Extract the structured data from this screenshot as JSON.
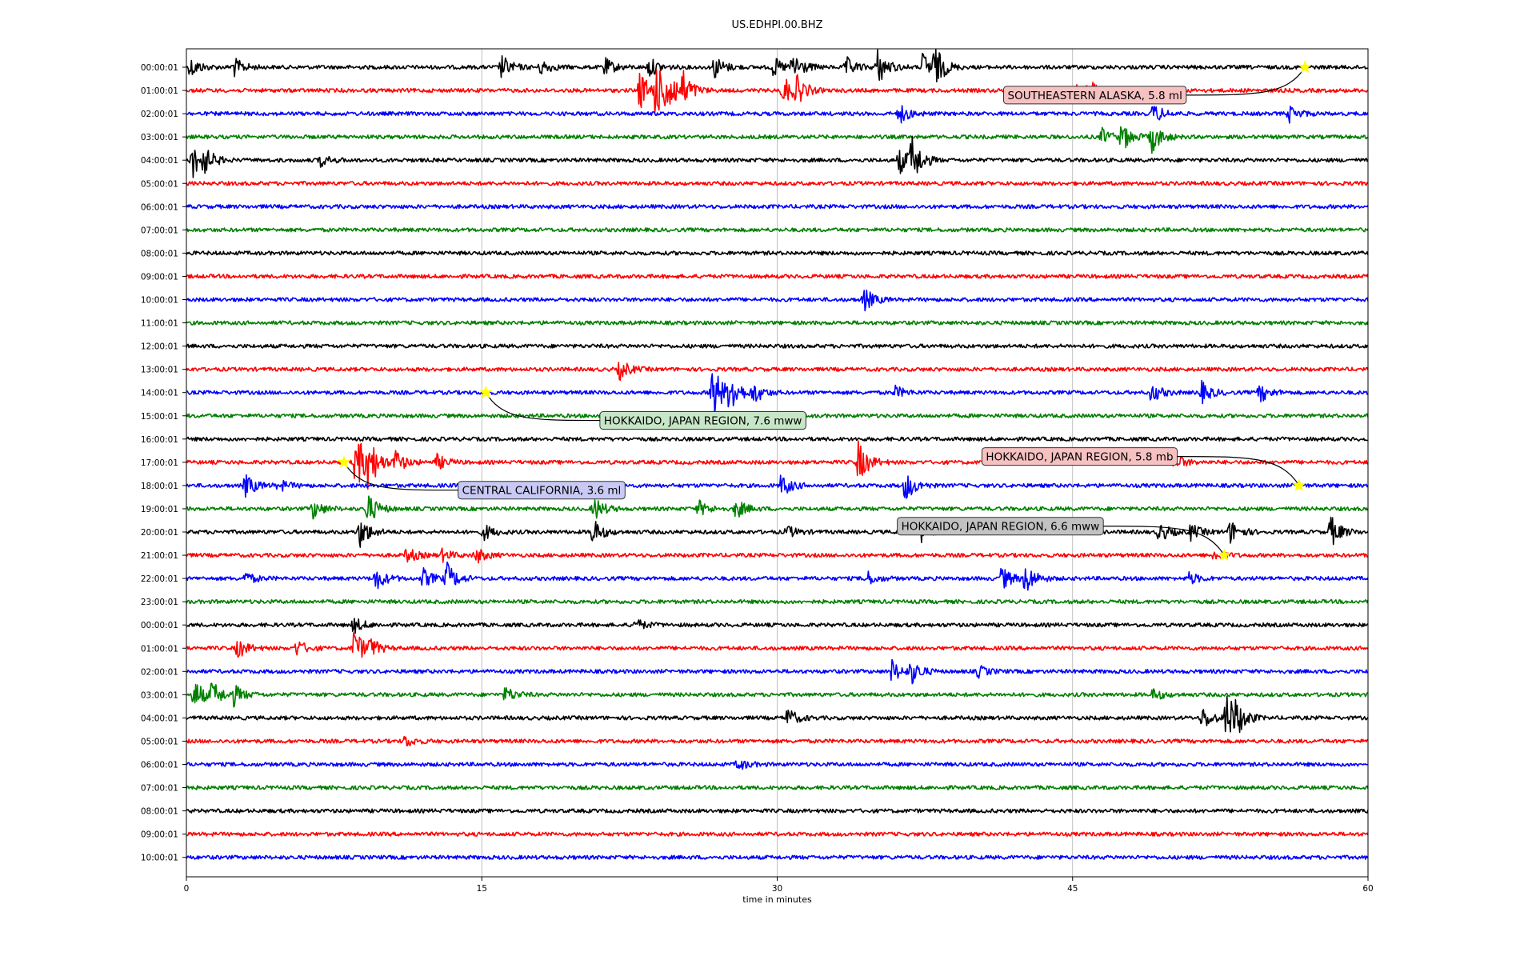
{
  "chart_data": {
    "type": "line",
    "title": "US.EDHPI.00.BHZ",
    "xlabel": "time in minutes",
    "ylabel": "",
    "xlim": [
      0,
      60
    ],
    "xticks": [
      "0",
      "15",
      "30",
      "45",
      "60"
    ],
    "grid": "vertical lines at x ticks",
    "trace_colors": [
      "#000000",
      "#ff0000",
      "#0000ff",
      "#008000"
    ],
    "rows": [
      {
        "label": "00:00:01",
        "color": "#000000",
        "bursts": [
          [
            0.2,
            0.5
          ],
          [
            2.4,
            0.5
          ],
          [
            16,
            0.6
          ],
          [
            18,
            0.4
          ],
          [
            21.2,
            0.5
          ],
          [
            23.5,
            0.5
          ],
          [
            26.8,
            0.6
          ],
          [
            29.8,
            0.5
          ],
          [
            30.8,
            0.8
          ],
          [
            33.5,
            0.5
          ],
          [
            35.1,
            0.9
          ],
          [
            37.4,
            0.8
          ],
          [
            38,
            0.9
          ]
        ]
      },
      {
        "label": "01:00:01",
        "color": "#ff0000",
        "bursts": [
          [
            23,
            1.0
          ],
          [
            23.8,
            1.4
          ],
          [
            24.4,
            1.2
          ],
          [
            25.2,
            0.8
          ],
          [
            30.3,
            0.8
          ],
          [
            31,
            0.6
          ],
          [
            45.3,
            0.5
          ],
          [
            46,
            0.4
          ]
        ]
      },
      {
        "label": "02:00:01",
        "color": "#0000ff",
        "bursts": [
          [
            36.2,
            0.5
          ],
          [
            49.1,
            0.5
          ],
          [
            56,
            0.4
          ]
        ]
      },
      {
        "label": "03:00:01",
        "color": "#008000",
        "bursts": [
          [
            46.5,
            0.4
          ],
          [
            47.5,
            0.7
          ],
          [
            49,
            0.8
          ]
        ]
      },
      {
        "label": "04:00:01",
        "color": "#000000",
        "bursts": [
          [
            0.3,
            0.9
          ],
          [
            0.8,
            0.6
          ],
          [
            6.8,
            0.3
          ],
          [
            36.2,
            0.7
          ],
          [
            36.8,
            1.2
          ]
        ]
      },
      {
        "label": "05:00:01",
        "color": "#ff0000",
        "bursts": []
      },
      {
        "label": "06:00:01",
        "color": "#0000ff",
        "bursts": []
      },
      {
        "label": "07:00:01",
        "color": "#008000",
        "bursts": []
      },
      {
        "label": "08:00:01",
        "color": "#000000",
        "bursts": []
      },
      {
        "label": "09:00:01",
        "color": "#ff0000",
        "bursts": []
      },
      {
        "label": "10:00:01",
        "color": "#0000ff",
        "bursts": [
          [
            34.4,
            0.6
          ]
        ]
      },
      {
        "label": "11:00:01",
        "color": "#008000",
        "bursts": []
      },
      {
        "label": "12:00:01",
        "color": "#000000",
        "bursts": []
      },
      {
        "label": "13:00:01",
        "color": "#ff0000",
        "bursts": [
          [
            22,
            0.5
          ]
        ]
      },
      {
        "label": "14:00:01",
        "color": "#0000ff",
        "bursts": [
          [
            26.7,
            1.6
          ],
          [
            27.6,
            1.0
          ],
          [
            28.8,
            0.5
          ],
          [
            36,
            0.3
          ],
          [
            49,
            0.5
          ],
          [
            51.5,
            0.6
          ],
          [
            54.5,
            0.5
          ]
        ]
      },
      {
        "label": "15:00:01",
        "color": "#008000",
        "bursts": []
      },
      {
        "label": "16:00:01",
        "color": "#000000",
        "bursts": []
      },
      {
        "label": "17:00:01",
        "color": "#ff0000",
        "bursts": [
          [
            8.6,
            1.6
          ],
          [
            9.2,
            1.2
          ],
          [
            10.6,
            0.6
          ],
          [
            12.7,
            0.4
          ],
          [
            34.1,
            1.1
          ],
          [
            50.2,
            0.4
          ]
        ]
      },
      {
        "label": "18:00:01",
        "color": "#0000ff",
        "bursts": [
          [
            3,
            0.6
          ],
          [
            4.7,
            0.3
          ],
          [
            30.2,
            0.6
          ],
          [
            36.5,
            0.8
          ]
        ]
      },
      {
        "label": "19:00:01",
        "color": "#008000",
        "bursts": [
          [
            6.4,
            0.5
          ],
          [
            9.2,
            0.8
          ],
          [
            20.7,
            0.6
          ],
          [
            26,
            0.4
          ],
          [
            27.9,
            0.5
          ]
        ]
      },
      {
        "label": "20:00:01",
        "color": "#000000",
        "bursts": [
          [
            8.8,
            0.8
          ],
          [
            15.1,
            0.4
          ],
          [
            20.6,
            0.7
          ],
          [
            30.5,
            0.3
          ],
          [
            37.3,
            0.5
          ],
          [
            49.4,
            0.5
          ],
          [
            51,
            0.4
          ],
          [
            53,
            0.6
          ],
          [
            58.1,
            0.8
          ]
        ]
      },
      {
        "label": "21:00:01",
        "color": "#ff0000",
        "bursts": [
          [
            11.2,
            0.4
          ],
          [
            13,
            0.3
          ],
          [
            14.7,
            0.4
          ],
          [
            52.2,
            0.3
          ]
        ]
      },
      {
        "label": "22:00:01",
        "color": "#0000ff",
        "bursts": [
          [
            3,
            0.3
          ],
          [
            9.6,
            0.6
          ],
          [
            12,
            0.5
          ],
          [
            13.2,
            0.8
          ],
          [
            34.5,
            0.4
          ],
          [
            41.4,
            0.6
          ],
          [
            42.6,
            0.8
          ],
          [
            50.9,
            0.3
          ]
        ]
      },
      {
        "label": "23:00:01",
        "color": "#008000",
        "bursts": []
      },
      {
        "label": "00:00:01",
        "color": "#000000",
        "bursts": [
          [
            8.5,
            0.4
          ],
          [
            22.8,
            0.3
          ]
        ]
      },
      {
        "label": "01:00:01",
        "color": "#ff0000",
        "bursts": [
          [
            2.6,
            0.5
          ],
          [
            5.6,
            0.4
          ],
          [
            8.5,
            1.0
          ],
          [
            9.3,
            0.4
          ]
        ]
      },
      {
        "label": "02:00:01",
        "color": "#0000ff",
        "bursts": [
          [
            35.8,
            0.6
          ],
          [
            36.8,
            0.6
          ],
          [
            40.2,
            0.3
          ]
        ]
      },
      {
        "label": "03:00:01",
        "color": "#008000",
        "bursts": [
          [
            0.4,
            0.8
          ],
          [
            1.3,
            0.6
          ],
          [
            2.4,
            0.5
          ],
          [
            16.2,
            0.4
          ],
          [
            49.1,
            0.3
          ]
        ]
      },
      {
        "label": "04:00:01",
        "color": "#000000",
        "bursts": [
          [
            30.5,
            0.5
          ],
          [
            51.6,
            0.6
          ],
          [
            52.8,
            1.4
          ],
          [
            53.3,
            0.6
          ]
        ]
      },
      {
        "label": "05:00:01",
        "color": "#ff0000",
        "bursts": [
          [
            11.1,
            0.3
          ]
        ]
      },
      {
        "label": "06:00:01",
        "color": "#0000ff",
        "bursts": [
          [
            28,
            0.3
          ]
        ]
      },
      {
        "label": "07:00:01",
        "color": "#008000",
        "bursts": []
      },
      {
        "label": "08:00:01",
        "color": "#000000",
        "bursts": []
      },
      {
        "label": "09:00:01",
        "color": "#ff0000",
        "bursts": []
      },
      {
        "label": "10:00:01",
        "color": "#0000ff",
        "bursts": []
      }
    ],
    "events": [
      {
        "label": "SOUTHEASTERN ALASKA, 5.8 ml",
        "row": 0,
        "x": 56.8,
        "box_color": "#f6c1c1",
        "box_x": 41.7,
        "box_row": 1.2
      },
      {
        "label": "HOKKAIDO, JAPAN REGION, 7.6 mww",
        "row": 14,
        "x": 15.2,
        "box_color": "#c7e6c7",
        "box_x": 21.2,
        "box_row": 15.2
      },
      {
        "label": "HOKKAIDO, JAPAN REGION, 5.8 mb",
        "row": 18,
        "x": 56.5,
        "box_color": "#f6c1c1",
        "box_x": 40.6,
        "box_row": 16.75
      },
      {
        "label": "CENTRAL CALIFORNIA, 3.6 ml",
        "row": 17,
        "x": 8.0,
        "box_color": "#c9c9f5",
        "box_x": 14.0,
        "box_row": 18.2
      },
      {
        "label": "HOKKAIDO, JAPAN REGION, 6.6 mww",
        "row": 21,
        "x": 52.7,
        "box_color": "#c2c2c2",
        "box_x": 36.3,
        "box_row": 19.75
      }
    ]
  }
}
